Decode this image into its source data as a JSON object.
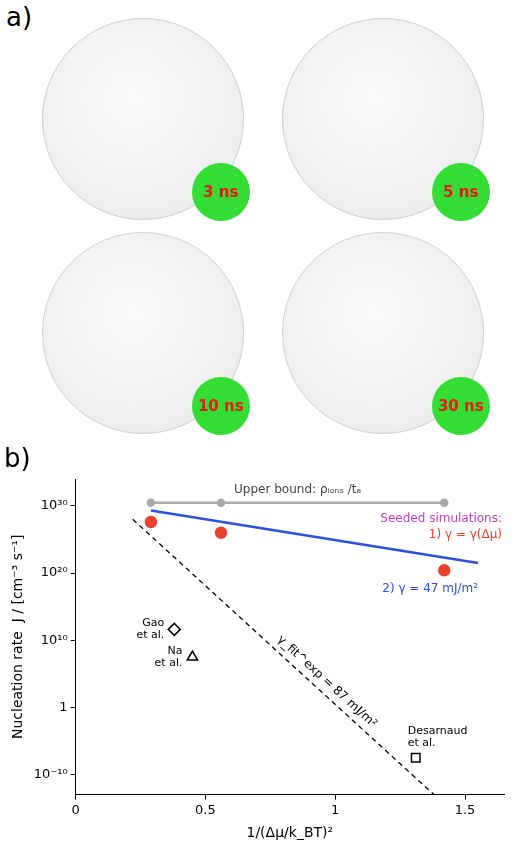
{
  "panel_a": {
    "letter": "a)",
    "snapshot_times": [
      "3 ns",
      "5 ns",
      "10 ns",
      "30 ns"
    ]
  },
  "chart_data": {
    "type": "scatter",
    "letter": "b)",
    "x_label": "1/(Δμ/k_BT)²",
    "y_label": "Nucleation rate  J / [cm⁻³ s⁻¹]",
    "log": "y",
    "grid": false,
    "xlim": [
      0,
      1.65
    ],
    "xticks": [
      0,
      0.5,
      1,
      1.5
    ],
    "ylim": [
      1e-13,
      1e+34
    ],
    "yticks": [
      {
        "value": 1e-10,
        "label": "10⁻¹⁰"
      },
      1,
      {
        "value": 10000000000.0,
        "label": "10¹⁰"
      },
      {
        "value": 1e+20,
        "label": "10²⁰"
      },
      {
        "value": 1e+30,
        "label": "10³⁰"
      }
    ],
    "annotations": [
      {
        "text": "Seeded simulations:",
        "color": "#c03cc0"
      }
    ],
    "series": [
      {
        "name": "Upper bound: ρᵢₒₙₛ /tₐ",
        "type": "line",
        "color": "#aaaaaa",
        "marker": "circle",
        "line_style": "solid",
        "x": [
          0.29,
          0.56,
          1.42
        ],
        "values": [
          3e+30,
          3e+30,
          3e+30
        ]
      },
      {
        "name": "1) γ = γ(Δμ)",
        "type": "scatter",
        "color": "#e8412c",
        "marker": "circle",
        "x": [
          0.29,
          0.56,
          1.42
        ],
        "values": [
          4e+27,
          1e+26,
          2.5e+20
        ]
      },
      {
        "name": "2) γ = 47 mJ/m²",
        "type": "line",
        "color": "#2b50e0",
        "marker": "none",
        "line_style": "solid",
        "x": [
          0.29,
          1.55
        ],
        "values": [
          2e+29,
          3e+21
        ]
      },
      {
        "name": "γ_fit^exp = 87 mJ/m²",
        "type": "line",
        "color": "#000000",
        "marker": "none",
        "line_style": "dashed",
        "x": [
          0.22,
          1.38
        ],
        "values": [
          1e+28,
          1e-13
        ]
      },
      {
        "name": "Gao et al.",
        "type": "scatter",
        "color": "#000000",
        "marker": "diamond",
        "x": [
          0.38
        ],
        "values": [
          400000000000.0
        ]
      },
      {
        "name": "Na et al.",
        "type": "scatter",
        "color": "#000000",
        "marker": "triangle",
        "x": [
          0.45
        ],
        "values": [
          30000000.0
        ]
      },
      {
        "name": "Desarnaud et al.",
        "type": "scatter",
        "color": "#000000",
        "marker": "square",
        "x": [
          1.31
        ],
        "values": [
          3e-08
        ]
      }
    ]
  }
}
